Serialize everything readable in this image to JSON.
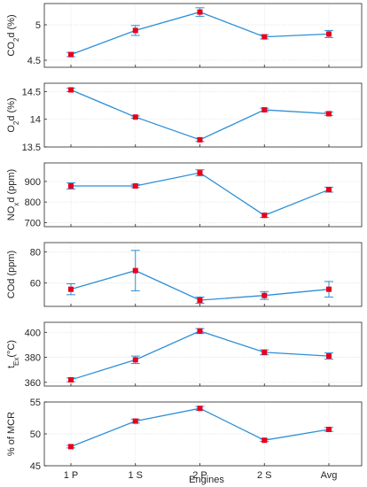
{
  "chart_data": {
    "type": "line",
    "xlabel": "Engines",
    "categories": [
      "1 P",
      "1 S",
      "2 P",
      "2 S",
      "Avg"
    ],
    "colors": {
      "line": "#2e8fd6",
      "marker": "#e8001c",
      "grid": "#d9d9d9",
      "axis": "#262626"
    },
    "grid": true,
    "panels": [
      {
        "ylabel": {
          "base": "CO",
          "sub1": "2",
          "rest": "d (%)"
        },
        "ylim": [
          4.4,
          5.3
        ],
        "yticks": [
          4.5,
          5
        ],
        "yticklabels": [
          "4.5",
          "5"
        ],
        "values": [
          4.58,
          4.92,
          5.18,
          4.83,
          4.87
        ],
        "errors": [
          0.03,
          0.07,
          0.06,
          0.03,
          0.05
        ]
      },
      {
        "ylabel": {
          "base": "O",
          "sub1": "2",
          "rest": "d (%)"
        },
        "ylim": [
          13.5,
          14.65
        ],
        "yticks": [
          13.5,
          14,
          14.5
        ],
        "yticklabels": [
          "13.5",
          "14",
          "14.5"
        ],
        "values": [
          14.53,
          14.04,
          13.63,
          14.17,
          14.1
        ],
        "errors": [
          0.03,
          0.02,
          0.03,
          0.03,
          0.03
        ]
      },
      {
        "ylabel": {
          "base": "NO",
          "sub1": "x",
          "rest": "d (ppm)"
        },
        "ylim": [
          680,
          990
        ],
        "yticks": [
          700,
          800,
          900
        ],
        "yticklabels": [
          "700",
          "800",
          "900"
        ],
        "values": [
          878,
          878,
          942,
          735,
          860
        ],
        "errors": [
          15,
          8,
          15,
          10,
          12
        ]
      },
      {
        "ylabel": {
          "base": "COd (ppm)",
          "sub1": "",
          "rest": ""
        },
        "ylim": [
          45,
          86
        ],
        "yticks": [
          60,
          80
        ],
        "yticklabels": [
          "60",
          "80"
        ],
        "values": [
          56,
          68,
          49,
          52,
          56
        ],
        "errors": [
          3.5,
          13,
          2,
          2.5,
          5
        ]
      },
      {
        "ylabel": {
          "base": "t",
          "sub1": "Ex",
          "rest": "(°C)"
        },
        "ylim": [
          357,
          408
        ],
        "yticks": [
          360,
          380,
          400
        ],
        "yticklabels": [
          "360",
          "380",
          "400"
        ],
        "values": [
          362,
          378,
          401,
          384,
          381
        ],
        "errors": [
          1.5,
          3,
          2,
          2,
          2.5
        ]
      },
      {
        "ylabel": {
          "base": "% of MCR",
          "sub1": "",
          "rest": ""
        },
        "ylim": [
          45,
          55
        ],
        "yticks": [
          45,
          50,
          55
        ],
        "yticklabels": [
          "45",
          "50",
          "55"
        ],
        "values": [
          48,
          52,
          54,
          49,
          50.7
        ],
        "errors": [
          0.2,
          0.3,
          0.3,
          0.2,
          0.3
        ]
      }
    ]
  }
}
